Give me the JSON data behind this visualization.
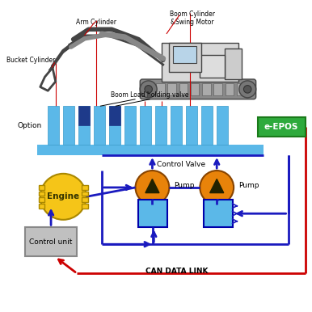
{
  "bg_color": "#ffffff",
  "valve_bar_color": "#5BB8E8",
  "valve_bar_dark": "#1E3A8A",
  "valve_base_color": "#5BB8E8",
  "epos_box_color": "#2EAA3C",
  "epos_text": "e-EPOS",
  "epos_text_color": "#ffffff",
  "engine_color": "#F5C518",
  "pump_color": "#E8830A",
  "control_box_color": "#5BB8E8",
  "control_unit_color": "#C0C0C0",
  "blue_line_color": "#1A1ABF",
  "red_line_color": "#CC0000",
  "label_option": "Option",
  "label_engine": "Engine",
  "label_pump1": "Pump",
  "label_pump2": "Pump",
  "label_control_valve": "Control Valve",
  "label_control_unit": "Control unit",
  "label_can": "CAN DATA LINK",
  "label_boom_load": "Boom Load holding valve",
  "label_arm": "Arm Cylinder",
  "label_boom": "Boom Cylinder\n&Swing Motor",
  "label_bucket": "Bucket Cylinder"
}
